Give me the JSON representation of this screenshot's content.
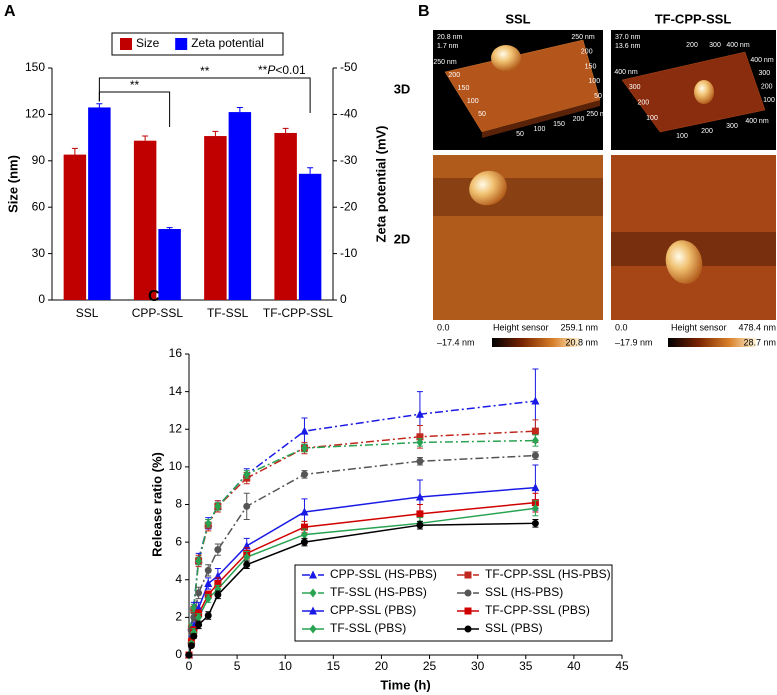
{
  "chart_data": [
    {
      "type": "bar",
      "panel": "A",
      "categories": [
        "SSL",
        "CPP-SSL",
        "TF-SSL",
        "TF-CPP-SSL"
      ],
      "y_label": "Size (nm)",
      "y2_label": "Zeta potential (mV)",
      "ylim": [
        0,
        150
      ],
      "yticks": [
        0,
        30,
        60,
        90,
        120,
        150
      ],
      "y2lim": [
        0,
        -50
      ],
      "y2ticks": [
        0,
        -10,
        -20,
        -30,
        -40,
        -50
      ],
      "legend": "top",
      "series": [
        {
          "name": "Size",
          "color": "#c00000",
          "values": [
            94,
            103,
            106,
            108
          ],
          "errors": [
            4,
            3,
            3,
            3
          ]
        },
        {
          "name": "Zeta potential",
          "color": "#0000ff",
          "axis": "y2",
          "values": [
            -41.5,
            -15.3,
            -40.5,
            -27.2
          ],
          "errors": [
            0.8,
            0.3,
            1,
            1.3
          ]
        }
      ],
      "significance": [
        {
          "categories": [
            "SSL",
            "TF-CPP-SSL"
          ],
          "label": "**"
        },
        {
          "categories": [
            "SSL",
            "CPP-SSL"
          ],
          "label": "**"
        }
      ],
      "note": [
        "**",
        "P",
        "<0.01"
      ]
    },
    {
      "type": "line",
      "panel": "C",
      "x_label": "Time (h)",
      "y_label": "Release ratio (%)",
      "x": [
        0,
        0.25,
        0.5,
        1,
        2,
        3,
        6,
        12,
        24,
        36
      ],
      "xlim": [
        0,
        45
      ],
      "xticks": [
        0,
        5,
        10,
        15,
        20,
        25,
        30,
        35,
        40,
        45
      ],
      "ylim": [
        0,
        16
      ],
      "yticks": [
        0,
        2,
        4,
        6,
        8,
        10,
        12,
        14,
        16
      ],
      "legend": "lower right",
      "series": [
        {
          "name": "CPP-SSL (HS-PBS)",
          "color": "#1a1ae6",
          "dash": "dashdot",
          "marker": "triangle",
          "values": [
            0,
            1.5,
            2.6,
            5.1,
            7.0,
            7.9,
            9.6,
            11.9,
            12.8,
            13.5
          ],
          "errors": [
            0,
            0.2,
            0.2,
            0.3,
            0.3,
            0.3,
            0.3,
            0.7,
            1.2,
            1.7
          ]
        },
        {
          "name": "TF-CPP-SSL (HS-PBS)",
          "color": "#c0281e",
          "dash": "dashdot",
          "marker": "square",
          "values": [
            0,
            1.4,
            2.4,
            5.0,
            6.9,
            7.9,
            9.4,
            11.0,
            11.6,
            11.9
          ],
          "errors": [
            0,
            0.2,
            0.2,
            0.3,
            0.3,
            0.3,
            0.3,
            0.3,
            0.6,
            0.6
          ]
        },
        {
          "name": "TF-SSL (HS-PBS)",
          "color": "#27a352",
          "dash": "dashdot",
          "marker": "diamond",
          "values": [
            0,
            1.5,
            2.5,
            5.0,
            7.0,
            7.9,
            9.6,
            11.0,
            11.3,
            11.4
          ],
          "errors": [
            0,
            0.2,
            0.2,
            0.2,
            0.2,
            0.2,
            0.2,
            0.2,
            0.2,
            0.3
          ]
        },
        {
          "name": "SSL (HS-PBS)",
          "color": "#555555",
          "dash": "dashdot",
          "marker": "circle",
          "values": [
            0,
            1.3,
            2.0,
            3.3,
            4.5,
            5.6,
            7.9,
            9.6,
            10.3,
            10.6
          ],
          "errors": [
            0,
            0.2,
            0.2,
            0.3,
            0.3,
            0.3,
            0.7,
            0.2,
            0.2,
            0.2
          ]
        },
        {
          "name": "CPP-SSL (PBS)",
          "color": "#1a1ae6",
          "dash": "solid",
          "marker": "triangle",
          "values": [
            0,
            0.8,
            1.5,
            2.5,
            3.8,
            4.2,
            5.8,
            7.6,
            8.4,
            8.9
          ],
          "errors": [
            0,
            0.2,
            0.2,
            0.3,
            0.3,
            0.4,
            0.4,
            0.7,
            0.9,
            1.2
          ]
        },
        {
          "name": "TF-CPP-SSL (PBS)",
          "color": "#d10000",
          "dash": "solid",
          "marker": "square",
          "values": [
            0,
            0.7,
            1.3,
            2.2,
            3.2,
            3.8,
            5.4,
            6.8,
            7.5,
            8.1
          ],
          "errors": [
            0,
            0.2,
            0.2,
            0.2,
            0.2,
            0.3,
            0.3,
            0.3,
            0.5,
            0.5
          ]
        },
        {
          "name": "TF-SSL (PBS)",
          "color": "#27a352",
          "dash": "solid",
          "marker": "diamond",
          "values": [
            0,
            0.6,
            1.2,
            2.0,
            3.0,
            3.5,
            5.2,
            6.4,
            7.0,
            7.8
          ],
          "errors": [
            0,
            0.1,
            0.2,
            0.2,
            0.2,
            0.2,
            0.3,
            0.3,
            0.3,
            0.4
          ]
        },
        {
          "name": "SSL (PBS)",
          "color": "#000000",
          "dash": "solid",
          "marker": "circle",
          "values": [
            0,
            0.5,
            1.0,
            1.6,
            2.1,
            3.2,
            4.8,
            6.0,
            6.9,
            7.0
          ],
          "errors": [
            0,
            0.1,
            0.1,
            0.2,
            0.2,
            0.2,
            0.2,
            0.2,
            0.2,
            0.2
          ]
        }
      ]
    }
  ],
  "afm": {
    "panel": "B",
    "columns": [
      "SSL",
      "TF-CPP-SSL"
    ],
    "rows": [
      "3D",
      "2D"
    ],
    "images3d": [
      {
        "z": [
          "20.8 nm",
          "1.7 nm"
        ],
        "axes": [
          [
            "250 nm",
            "200",
            "150",
            "100",
            "50"
          ],
          [
            "50",
            "100",
            "150",
            "200",
            "250 nm"
          ],
          [
            "250 nm",
            "200",
            "150",
            "100",
            "50"
          ]
        ]
      },
      {
        "z": [
          "37.0 nm",
          "13.6 nm"
        ],
        "axes": [
          [
            "400 nm",
            "300",
            "200",
            "100"
          ],
          [
            "100",
            "200",
            "300",
            "400 nm"
          ],
          [
            "400 nm",
            "300",
            "200",
            "100"
          ],
          [
            "200",
            "300",
            "400 nm"
          ]
        ]
      }
    ],
    "scales": [
      {
        "min": "0.0",
        "title": "Height sensor",
        "max": "259.1 nm",
        "low": "–17.4 nm",
        "high": "20.8 nm"
      },
      {
        "min": "0.0",
        "title": "Height sensor",
        "max": "478.4 nm",
        "low": "–17.9 nm",
        "high": "28.7 nm"
      }
    ]
  }
}
